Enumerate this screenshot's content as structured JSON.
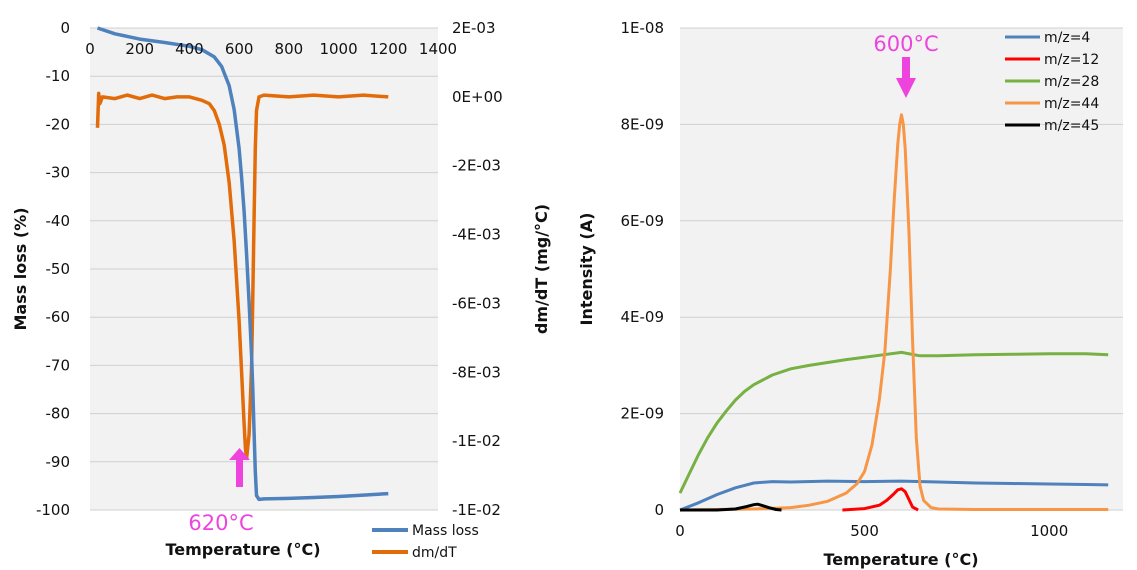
{
  "chart_data": [
    {
      "type": "line",
      "xlabel": "Temperature (°C)",
      "ylabel": "Mass loss (%)",
      "ylabel_right": "dm/dT (mg/°C)",
      "xlim": [
        0,
        1400
      ],
      "ylim": [
        -100,
        0
      ],
      "ylim_right": [
        -0.012,
        0.002
      ],
      "x_ticks": [
        "0",
        "200",
        "400",
        "600",
        "800",
        "1000",
        "1200",
        "1400"
      ],
      "y_ticks": [
        "0",
        "-10",
        "-20",
        "-30",
        "-40",
        "-50",
        "-60",
        "-70",
        "-80",
        "-90",
        "-100"
      ],
      "y_right_ticks": [
        "2E-03",
        "0E+00",
        "-2E-03",
        "-4E-03",
        "-6E-03",
        "-8E-03",
        "-1E-02",
        "-1E-02"
      ],
      "grid": true,
      "legend_position": "bottom-right",
      "annotation": {
        "text": "620°C",
        "x": 620
      },
      "series": [
        {
          "name": "Mass loss",
          "color": "#4f81bd",
          "axis": "left",
          "x": [
            30,
            100,
            200,
            300,
            400,
            450,
            500,
            530,
            560,
            580,
            600,
            610,
            620,
            630,
            640,
            650,
            655,
            660,
            665,
            670,
            680,
            700,
            800,
            900,
            1000,
            1100,
            1200
          ],
          "y": [
            0,
            -1.2,
            -2.3,
            -3.0,
            -3.8,
            -4.5,
            -6.0,
            -8.0,
            -12.0,
            -17.0,
            -25.0,
            -31.0,
            -38.0,
            -47.0,
            -57.0,
            -68.0,
            -75.0,
            -84.0,
            -92.0,
            -97.0,
            -97.8,
            -97.7,
            -97.6,
            -97.4,
            -97.2,
            -96.9,
            -96.6
          ]
        },
        {
          "name": "dm/dT",
          "color": "#e36c0a",
          "axis": "right",
          "x": [
            30,
            35,
            40,
            50,
            100,
            150,
            200,
            250,
            300,
            350,
            400,
            450,
            480,
            500,
            520,
            540,
            560,
            580,
            600,
            610,
            620,
            625,
            630,
            640,
            650,
            655,
            660,
            665,
            670,
            680,
            700,
            800,
            900,
            1000,
            1100,
            1200
          ],
          "y": [
            -0.0009,
            0.0001,
            -0.0002,
            0.0,
            -5e-05,
            5e-05,
            -5e-05,
            5e-05,
            -5e-05,
            0.0,
            0.0,
            -0.0001,
            -0.0002,
            -0.0004,
            -0.0008,
            -0.0014,
            -0.0025,
            -0.0042,
            -0.0065,
            -0.008,
            -0.0095,
            -0.0102,
            -0.0105,
            -0.0098,
            -0.0078,
            -0.0058,
            -0.0035,
            -0.0015,
            -0.0004,
            0.0,
            5e-05,
            0.0,
            5e-05,
            0.0,
            5e-05,
            0.0
          ]
        }
      ]
    },
    {
      "type": "line",
      "xlabel": "Temperature (°C)",
      "ylabel": "Intensity (A)",
      "xlim": [
        0,
        1200
      ],
      "ylim": [
        0,
        1e-08
      ],
      "x_ticks": [
        "0",
        "500",
        "1000"
      ],
      "y_ticks": [
        "0",
        "2E-09",
        "4E-09",
        "6E-09",
        "8E-09",
        "1E-08"
      ],
      "grid": true,
      "legend_position": "top-right",
      "annotation": {
        "text": "600°C",
        "x": 600
      },
      "series": [
        {
          "name": "m/z=4",
          "color": "#4f81bd",
          "x": [
            0,
            50,
            100,
            150,
            200,
            250,
            300,
            400,
            500,
            600,
            700,
            800,
            900,
            1000,
            1100,
            1160
          ],
          "y": [
            0,
            1.5e-10,
            3.2e-10,
            4.6e-10,
            5.6e-10,
            5.9e-10,
            5.8e-10,
            6e-10,
            5.9e-10,
            6e-10,
            5.8e-10,
            5.6e-10,
            5.5e-10,
            5.4e-10,
            5.3e-10,
            5.2e-10
          ]
        },
        {
          "name": "m/z=12",
          "color": "#ff0000",
          "x": [
            440,
            500,
            540,
            560,
            580,
            590,
            600,
            610,
            620,
            630,
            645
          ],
          "y": [
            0,
            3e-11,
            1e-10,
            2e-10,
            3.4e-10,
            4.2e-10,
            4.4e-10,
            3.8e-10,
            2.2e-10,
            6e-11,
            0
          ]
        },
        {
          "name": "m/z=28",
          "color": "#77b043",
          "x": [
            0,
            25,
            50,
            75,
            100,
            125,
            150,
            175,
            200,
            250,
            300,
            350,
            400,
            450,
            500,
            550,
            600,
            650,
            700,
            800,
            900,
            1000,
            1100,
            1160
          ],
          "y": [
            3.5e-10,
            7.5e-10,
            1.15e-09,
            1.5e-09,
            1.8e-09,
            2.05e-09,
            2.28e-09,
            2.46e-09,
            2.6e-09,
            2.8e-09,
            2.93e-09,
            3e-09,
            3.06e-09,
            3.12e-09,
            3.17e-09,
            3.22e-09,
            3.27e-09,
            3.2e-09,
            3.2e-09,
            3.22e-09,
            3.23e-09,
            3.24e-09,
            3.24e-09,
            3.22e-09
          ]
        },
        {
          "name": "m/z=44",
          "color": "#f79646",
          "x": [
            0,
            100,
            200,
            300,
            350,
            400,
            450,
            480,
            500,
            520,
            540,
            555,
            570,
            580,
            590,
            595,
            600,
            605,
            610,
            620,
            630,
            640,
            650,
            660,
            680,
            700,
            800,
            900,
            1000,
            1100,
            1160
          ],
          "y": [
            0,
            1e-11,
            2e-11,
            5e-11,
            1e-10,
            1.8e-10,
            3.5e-10,
            5.5e-10,
            8e-10,
            1.35e-09,
            2.3e-09,
            3.3e-09,
            5e-09,
            6.4e-09,
            7.6e-09,
            8e-09,
            8.2e-09,
            8e-09,
            7.5e-09,
            5.8e-09,
            3.5e-09,
            1.5e-09,
            5e-10,
            2e-10,
            5e-11,
            2e-11,
            1e-11,
            1e-11,
            1e-11,
            1e-11,
            1e-11
          ]
        },
        {
          "name": "m/z=45",
          "color": "#000000",
          "x": [
            0,
            100,
            150,
            180,
            200,
            210,
            220,
            240,
            260,
            275
          ],
          "y": [
            0,
            0,
            2e-11,
            7e-11,
            1.1e-10,
            1.2e-10,
            1e-10,
            5e-11,
            1e-11,
            0
          ]
        }
      ]
    }
  ]
}
